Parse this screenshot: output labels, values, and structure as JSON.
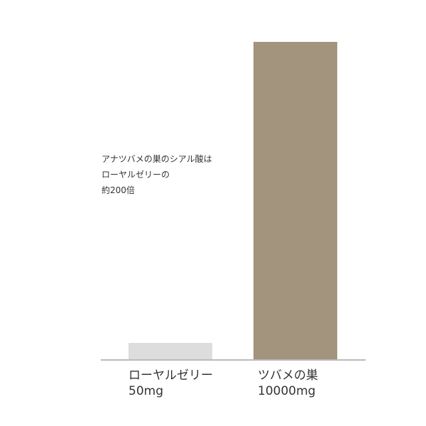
{
  "chart_data": {
    "type": "bar",
    "categories": [
      "ローヤルゼリー",
      "ツバメの巣"
    ],
    "values": [
      50,
      10000
    ],
    "value_labels": [
      "50mg",
      "10000mg"
    ],
    "annotation": [
      "アナツバメの巣のシアル酸は",
      "ローヤルゼリーの",
      "約200倍"
    ],
    "title": "",
    "xlabel": "",
    "ylabel": "",
    "ylim": [
      0,
      10000
    ],
    "grid": false,
    "colors": [
      "#dddddd",
      "#a3947e"
    ],
    "baseline_color": "#bbbbbb"
  }
}
